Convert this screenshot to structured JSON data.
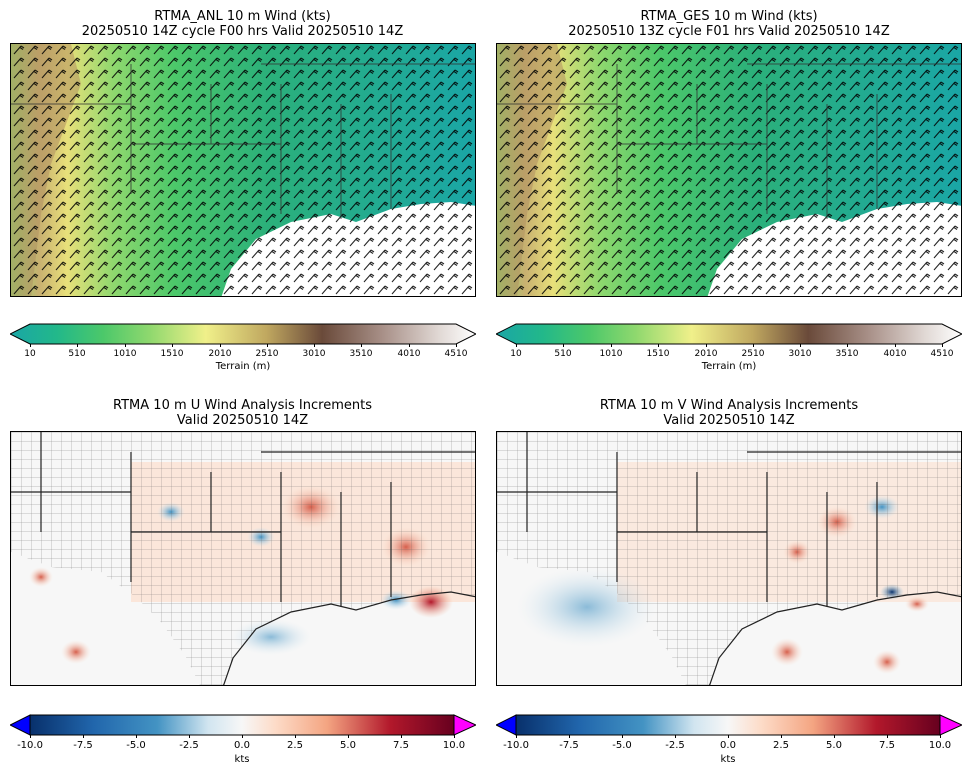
{
  "panels": [
    {
      "id": "anl",
      "title_line1": "RTMA_ANL 10 m Wind (kts)",
      "title_line2": "20250510 14Z cycle F00 hrs Valid 20250510 14Z",
      "colorbar_label": "Terrain (m)",
      "colorbar_ticks": [
        "10",
        "510",
        "1010",
        "1510",
        "2010",
        "2510",
        "3010",
        "3510",
        "4010",
        "4510"
      ]
    },
    {
      "id": "ges",
      "title_line1": "RTMA_GES 10 m Wind (kts)",
      "title_line2": "20250510 13Z cycle F01 hrs Valid 20250510 14Z",
      "colorbar_label": "Terrain (m)",
      "colorbar_ticks": [
        "10",
        "510",
        "1010",
        "1510",
        "2010",
        "2510",
        "3010",
        "3510",
        "4010",
        "4510"
      ]
    },
    {
      "id": "uinc",
      "title_line1": "RTMA 10 m U Wind Analysis Increments",
      "title_line2": "Valid 20250510 14Z",
      "colorbar_label": "kts",
      "colorbar_ticks": [
        "-10.0",
        "-7.5",
        "-5.0",
        "-2.5",
        "0.0",
        "2.5",
        "5.0",
        "7.5",
        "10.0"
      ]
    },
    {
      "id": "vinc",
      "title_line1": "RTMA 10 m V Wind Analysis Increments",
      "title_line2": "Valid 20250510 14Z",
      "colorbar_label": "kts",
      "colorbar_ticks": [
        "-10.0",
        "-7.5",
        "-5.0",
        "-2.5",
        "0.0",
        "2.5",
        "5.0",
        "7.5",
        "10.0"
      ]
    }
  ],
  "colors": {
    "terrain": [
      "#1aa6a6",
      "#22b88a",
      "#4cc86a",
      "#8fd86e",
      "#d8f08a",
      "#e8e07a",
      "#c0a860",
      "#8a7050",
      "#6a4a3a",
      "#a89088",
      "#e0d8d4",
      "#ffffff"
    ],
    "diverging": [
      "#08306b",
      "#2166ac",
      "#4393c3",
      "#92c5de",
      "#d1e5f0",
      "#f7f7f7",
      "#fddbc7",
      "#f4a582",
      "#d6604d",
      "#b2182b",
      "#67001f"
    ],
    "under": "#0000ff",
    "over": "#ff00ff"
  }
}
